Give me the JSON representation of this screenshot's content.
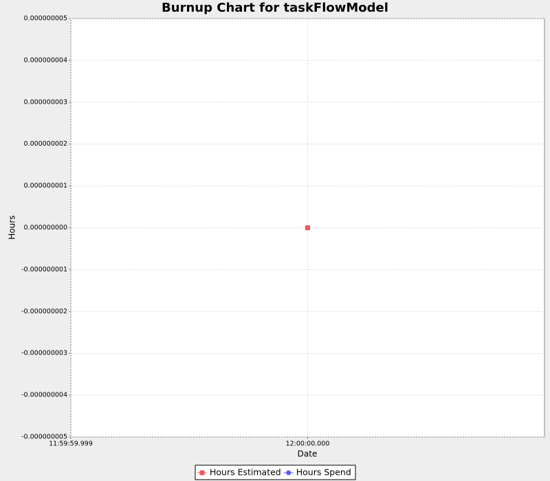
{
  "chart_data": {
    "type": "scatter",
    "title": "Burnup Chart for taskFlowModel",
    "x_label": "Date",
    "y_label": "Hours",
    "xlim": [
      "11:59:59.999",
      "12:00:00.001"
    ],
    "xticks": [
      "11:59:59.999",
      "12:00:00.000"
    ],
    "ylim": [
      -5e-09,
      5e-09
    ],
    "yticks": [
      {
        "value": -5e-09,
        "label": "-0.000000005"
      },
      {
        "value": -4e-09,
        "label": "-0.000000004"
      },
      {
        "value": -3e-09,
        "label": "-0.000000003"
      },
      {
        "value": -2e-09,
        "label": "-0.000000002"
      },
      {
        "value": -1e-09,
        "label": "-0.000000001"
      },
      {
        "value": 0,
        "label": "0.000000000"
      },
      {
        "value": 1e-09,
        "label": "0.000000001"
      },
      {
        "value": 2e-09,
        "label": "0.000000002"
      },
      {
        "value": 3e-09,
        "label": "0.000000003"
      },
      {
        "value": 4e-09,
        "label": "0.000000004"
      },
      {
        "value": 5e-09,
        "label": "0.000000005"
      }
    ],
    "grid": true,
    "legend": "bottom",
    "series": [
      {
        "name": "Hours Estimated",
        "color": "#ee5a5a",
        "marker": "square",
        "x": [
          "12:00:00.000"
        ],
        "values": [
          0
        ]
      },
      {
        "name": "Hours Spend",
        "color": "#5a5aee",
        "marker": "circle",
        "x": [],
        "values": []
      }
    ]
  }
}
